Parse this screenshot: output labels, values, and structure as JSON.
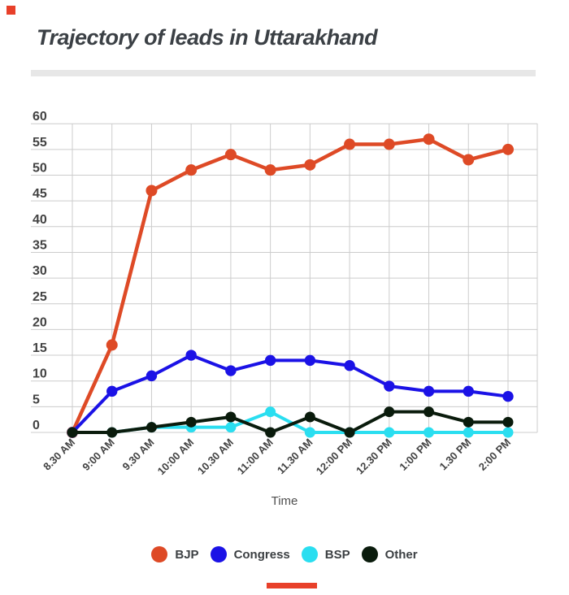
{
  "page": {
    "title": "Trajectory of leads in Uttarakhand"
  },
  "chart_data": {
    "type": "line",
    "title": "Trajectory of leads in Uttarakhand",
    "xlabel": "Time",
    "ylabel": "",
    "ylim": [
      0,
      60
    ],
    "y_tick_step": 5,
    "grid": true,
    "legend_position": "bottom",
    "categories": [
      "8.30 AM",
      "9:00 AM",
      "9.30 AM",
      "10:00 AM",
      "10.30 AM",
      "11:00 AM",
      "11.30 AM",
      "12:00 PM",
      "12.30 PM",
      "1:00 PM",
      "1.30 PM",
      "2:00 PM"
    ],
    "series": [
      {
        "name": "BJP",
        "color": "#de4a26",
        "values": [
          0,
          17,
          47,
          51,
          54,
          51,
          52,
          56,
          56,
          57,
          53,
          55
        ]
      },
      {
        "name": "Congress",
        "color": "#1b12e6",
        "values": [
          0,
          8,
          11,
          15,
          12,
          14,
          14,
          13,
          9,
          8,
          8,
          7
        ]
      },
      {
        "name": "BSP",
        "color": "#2adef0",
        "values": [
          0,
          0,
          1,
          1,
          1,
          4,
          0,
          0,
          0,
          0,
          0,
          0
        ]
      },
      {
        "name": "Other",
        "color": "#0a1b0c",
        "values": [
          0,
          0,
          1,
          2,
          3,
          0,
          3,
          0,
          4,
          4,
          2,
          2
        ]
      }
    ]
  },
  "ui": {
    "title_color": "#3b4045",
    "divider_color": "#e7e7e7",
    "gridline_color": "#cccccc",
    "axis_label_color": "#424242",
    "time_label_color": "#4e4e4e",
    "legend_text_color": "#3c4043",
    "accent_color": "#e8402a",
    "background": "#ffffff"
  }
}
